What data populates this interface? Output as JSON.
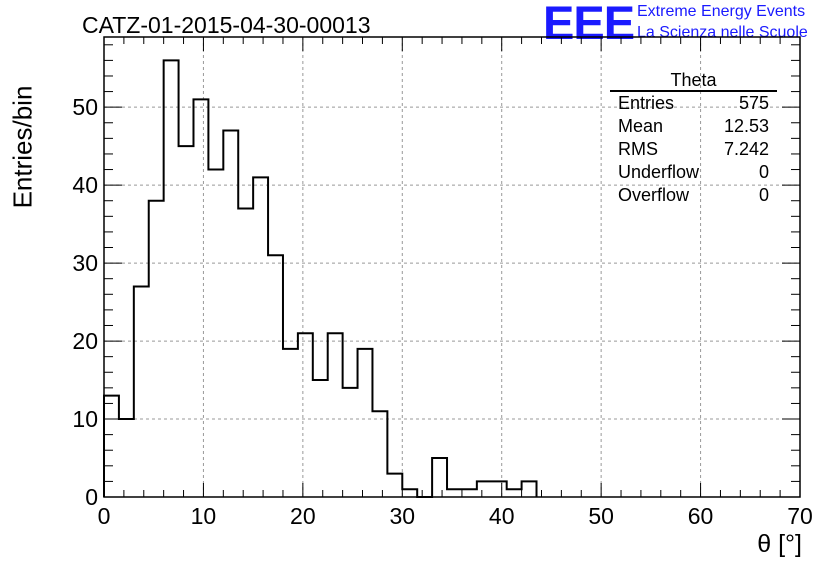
{
  "chart_data": {
    "type": "histogram",
    "title": "CATZ-01-2015-04-30-00013",
    "xlabel": "θ [°]",
    "ylabel": "Entries/bin",
    "xlim": [
      0,
      70
    ],
    "ylim": [
      0,
      59
    ],
    "bin_width": 1.5,
    "bin_start": 0,
    "values": [
      13,
      10,
      27,
      38,
      56,
      45,
      51,
      42,
      47,
      37,
      41,
      31,
      19,
      21,
      15,
      21,
      14,
      19,
      11,
      3,
      1,
      0,
      5,
      1,
      1,
      2,
      2,
      1,
      2
    ],
    "x_ticks": [
      0,
      10,
      20,
      30,
      40,
      50,
      60,
      70
    ],
    "y_ticks": [
      0,
      10,
      20,
      30,
      40,
      50
    ],
    "grid": true,
    "stats_box": {
      "title": "Theta",
      "rows": [
        {
          "label": "Entries",
          "value": "575"
        },
        {
          "label": "Mean",
          "value": "12.53"
        },
        {
          "label": "RMS",
          "value": "7.242"
        },
        {
          "label": "Underflow",
          "value": "0"
        },
        {
          "label": "Overflow",
          "value": "0"
        }
      ]
    }
  },
  "logo": {
    "mark": "EEE",
    "line1": "Extreme Energy Events",
    "line2": "La Scienza nelle Scuole",
    "color": "#1a1aff"
  }
}
